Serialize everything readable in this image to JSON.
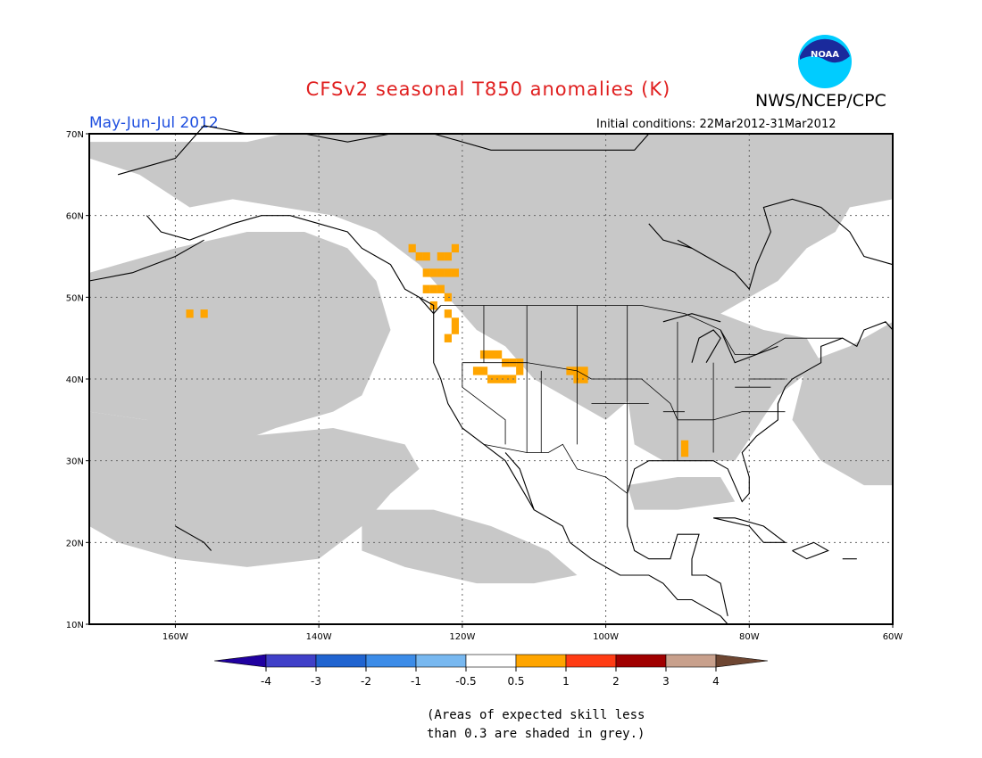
{
  "title": "CFSv2 seasonal T850 anomalies (K)",
  "agency": "NWS/NCEP/CPC",
  "logo_text": "NOAA",
  "period": "May-Jun-Jul 2012",
  "initial_conditions": "Initial conditions: 22Mar2012-31Mar2012",
  "note_lines": [
    "(Areas of expected skill less",
    "than 0.3 are shaded in grey.)"
  ],
  "map": {
    "lon_range": [
      -172,
      -60
    ],
    "lat_range": [
      10,
      70
    ],
    "lon_ticks": [
      {
        "value": -160,
        "label": "160W"
      },
      {
        "value": -140,
        "label": "140W"
      },
      {
        "value": -120,
        "label": "120W"
      },
      {
        "value": -100,
        "label": "100W"
      },
      {
        "value": -80,
        "label": "80W"
      },
      {
        "value": -60,
        "label": "60W"
      }
    ],
    "lat_ticks": [
      {
        "value": 70,
        "label": "70N"
      },
      {
        "value": 60,
        "label": "60N"
      },
      {
        "value": 50,
        "label": "50N"
      },
      {
        "value": 40,
        "label": "40N"
      },
      {
        "value": 30,
        "label": "30N"
      },
      {
        "value": 20,
        "label": "20N"
      },
      {
        "value": 10,
        "label": "10N"
      }
    ],
    "grid": true,
    "low_skill_color": "#c8c8c8",
    "coast_color": "#000000",
    "grey_regions": [
      {
        "name": "arctic-canada",
        "points": [
          [
            -172,
            69
          ],
          [
            -150,
            69
          ],
          [
            -145,
            70
          ],
          [
            -60,
            70
          ],
          [
            -60,
            62
          ],
          [
            -66,
            61
          ],
          [
            -68,
            58
          ],
          [
            -72,
            56
          ],
          [
            -76,
            52
          ],
          [
            -80,
            50
          ],
          [
            -86,
            47
          ],
          [
            -92,
            42
          ],
          [
            -96,
            38
          ],
          [
            -100,
            35
          ],
          [
            -104,
            37
          ],
          [
            -110,
            40
          ],
          [
            -114,
            44
          ],
          [
            -118,
            46
          ],
          [
            -122,
            50
          ],
          [
            -126,
            54
          ],
          [
            -132,
            58
          ],
          [
            -138,
            60
          ],
          [
            -145,
            61
          ],
          [
            -152,
            62
          ],
          [
            -158,
            61
          ],
          [
            -165,
            65
          ],
          [
            -172,
            67
          ]
        ]
      },
      {
        "name": "eastern-us",
        "points": [
          [
            -96,
            44
          ],
          [
            -90,
            47
          ],
          [
            -84,
            48
          ],
          [
            -78,
            46
          ],
          [
            -72,
            45
          ],
          [
            -70,
            42
          ],
          [
            -76,
            38
          ],
          [
            -79,
            34
          ],
          [
            -82,
            30
          ],
          [
            -88,
            30
          ],
          [
            -92,
            30
          ],
          [
            -96,
            32
          ],
          [
            -97,
            38
          ]
        ]
      },
      {
        "name": "gulf-of-mexico",
        "points": [
          [
            -97,
            27
          ],
          [
            -90,
            28
          ],
          [
            -84,
            28
          ],
          [
            -82,
            25
          ],
          [
            -90,
            24
          ],
          [
            -96,
            24
          ]
        ]
      },
      {
        "name": "atlantic-east",
        "points": [
          [
            -72,
            42
          ],
          [
            -66,
            44
          ],
          [
            -60,
            47
          ],
          [
            -60,
            27
          ],
          [
            -64,
            27
          ],
          [
            -70,
            30
          ],
          [
            -74,
            35
          ]
        ]
      },
      {
        "name": "pacific-north",
        "points": [
          [
            -172,
            53
          ],
          [
            -168,
            54
          ],
          [
            -160,
            56
          ],
          [
            -150,
            58
          ],
          [
            -142,
            58
          ],
          [
            -136,
            56
          ],
          [
            -132,
            52
          ],
          [
            -130,
            46
          ],
          [
            -132,
            42
          ],
          [
            -134,
            38
          ],
          [
            -138,
            36
          ],
          [
            -146,
            34
          ],
          [
            -152,
            32
          ],
          [
            -158,
            33
          ],
          [
            -164,
            35
          ],
          [
            -172,
            36
          ]
        ]
      },
      {
        "name": "pacific-central",
        "points": [
          [
            -172,
            36
          ],
          [
            -164,
            35
          ],
          [
            -150,
            33
          ],
          [
            -138,
            34
          ],
          [
            -128,
            32
          ],
          [
            -126,
            29
          ],
          [
            -130,
            26
          ],
          [
            -134,
            22
          ],
          [
            -140,
            18
          ],
          [
            -150,
            17
          ],
          [
            -160,
            18
          ],
          [
            -168,
            20
          ],
          [
            -172,
            22
          ]
        ]
      },
      {
        "name": "pacific-south",
        "points": [
          [
            -134,
            24
          ],
          [
            -124,
            24
          ],
          [
            -116,
            22
          ],
          [
            -108,
            19
          ],
          [
            -104,
            16
          ],
          [
            -110,
            15
          ],
          [
            -118,
            15
          ],
          [
            -128,
            17
          ],
          [
            -134,
            19
          ]
        ]
      }
    ],
    "warm_cells": [
      [
        -158,
        48
      ],
      [
        -156,
        48
      ],
      [
        -127,
        56
      ],
      [
        -126,
        55
      ],
      [
        -125,
        55
      ],
      [
        -123,
        55
      ],
      [
        -122,
        55
      ],
      [
        -121,
        56
      ],
      [
        -125,
        53
      ],
      [
        -124,
        53
      ],
      [
        -123,
        53
      ],
      [
        -122,
        53
      ],
      [
        -121,
        53
      ],
      [
        -125,
        51
      ],
      [
        -124,
        51
      ],
      [
        -123,
        51
      ],
      [
        -122,
        50
      ],
      [
        -124,
        49
      ],
      [
        -122,
        48
      ],
      [
        -121,
        47
      ],
      [
        -121,
        46
      ],
      [
        -122,
        45
      ],
      [
        -117,
        43
      ],
      [
        -116,
        43
      ],
      [
        -115,
        43
      ],
      [
        -114,
        42
      ],
      [
        -113,
        42
      ],
      [
        -112,
        42
      ],
      [
        -118,
        41
      ],
      [
        -117,
        41
      ],
      [
        -116,
        40
      ],
      [
        -115,
        40
      ],
      [
        -114,
        40
      ],
      [
        -113,
        40
      ],
      [
        -112,
        41
      ],
      [
        -105,
        41
      ],
      [
        -104,
        41
      ],
      [
        -103,
        41
      ],
      [
        -104,
        40
      ],
      [
        -103,
        40
      ],
      [
        -89,
        32
      ],
      [
        -89,
        31
      ]
    ],
    "warm_cell_color": "#ffa500",
    "coast_lines": [
      [
        [
          -168,
          65
        ],
        [
          -164,
          66
        ],
        [
          -160,
          67
        ],
        [
          -156,
          71
        ],
        [
          -150,
          70
        ],
        [
          -142,
          70
        ],
        [
          -136,
          69
        ],
        [
          -130,
          70
        ],
        [
          -124,
          70
        ],
        [
          -116,
          68
        ],
        [
          -110,
          68
        ],
        [
          -102,
          68
        ],
        [
          -96,
          68
        ],
        [
          -94,
          70
        ]
      ],
      [
        [
          -164,
          60
        ],
        [
          -162,
          58
        ],
        [
          -158,
          57
        ],
        [
          -152,
          59
        ],
        [
          -148,
          60
        ],
        [
          -144,
          60
        ],
        [
          -140,
          59
        ],
        [
          -136,
          58
        ],
        [
          -134,
          56
        ],
        [
          -132,
          55
        ],
        [
          -130,
          54
        ],
        [
          -128,
          51
        ],
        [
          -124,
          49
        ],
        [
          -124,
          46
        ],
        [
          -124,
          42
        ],
        [
          -123,
          40
        ],
        [
          -122,
          37
        ],
        [
          -120,
          34
        ],
        [
          -117,
          32
        ],
        [
          -114,
          30
        ],
        [
          -112,
          27
        ],
        [
          -110,
          24
        ],
        [
          -106,
          22
        ],
        [
          -105,
          20
        ],
        [
          -102,
          18
        ],
        [
          -98,
          16
        ],
        [
          -94,
          16
        ],
        [
          -92,
          15
        ],
        [
          -90,
          13
        ],
        [
          -88,
          13
        ],
        [
          -86,
          12
        ],
        [
          -84,
          11
        ],
        [
          -83,
          10
        ]
      ],
      [
        [
          -114,
          31
        ],
        [
          -112,
          29
        ],
        [
          -110,
          24
        ]
      ],
      [
        [
          -97,
          26
        ],
        [
          -97,
          22
        ],
        [
          -96,
          19
        ],
        [
          -94,
          18
        ],
        [
          -91,
          18
        ],
        [
          -90,
          21
        ],
        [
          -87,
          21
        ],
        [
          -88,
          18
        ],
        [
          -88,
          16
        ],
        [
          -86,
          16
        ],
        [
          -84,
          15
        ],
        [
          -83,
          11
        ]
      ],
      [
        [
          -97,
          26
        ],
        [
          -96,
          29
        ],
        [
          -94,
          30
        ],
        [
          -90,
          30
        ],
        [
          -88,
          30
        ],
        [
          -85,
          30
        ],
        [
          -83,
          29
        ],
        [
          -82,
          27
        ],
        [
          -81,
          25
        ],
        [
          -80,
          26
        ],
        [
          -80,
          28
        ],
        [
          -81,
          31
        ],
        [
          -79,
          33
        ],
        [
          -76,
          35
        ],
        [
          -76,
          37
        ],
        [
          -75,
          39
        ],
        [
          -74,
          40
        ],
        [
          -72,
          41
        ],
        [
          -70,
          42
        ],
        [
          -70,
          44
        ],
        [
          -67,
          45
        ],
        [
          -65,
          44
        ],
        [
          -64,
          46
        ],
        [
          -61,
          47
        ],
        [
          -60,
          46
        ]
      ],
      [
        [
          -85,
          23
        ],
        [
          -82,
          23
        ],
        [
          -78,
          22
        ],
        [
          -75,
          20
        ],
        [
          -78,
          20
        ],
        [
          -80,
          22
        ],
        [
          -85,
          23
        ]
      ],
      [
        [
          -74,
          19
        ],
        [
          -71,
          20
        ],
        [
          -69,
          19
        ],
        [
          -72,
          18
        ],
        [
          -74,
          19
        ]
      ],
      [
        [
          -67,
          18
        ],
        [
          -65,
          18
        ]
      ],
      [
        [
          -84,
          46
        ],
        [
          -82,
          42
        ],
        [
          -79,
          43
        ],
        [
          -76,
          44
        ]
      ],
      [
        [
          -88,
          42
        ],
        [
          -87,
          45
        ],
        [
          -85,
          46
        ],
        [
          -84,
          45
        ],
        [
          -86,
          42
        ]
      ],
      [
        [
          -92,
          47
        ],
        [
          -88,
          48
        ],
        [
          -84,
          47
        ]
      ],
      [
        [
          -90,
          57
        ],
        [
          -86,
          55
        ],
        [
          -82,
          53
        ],
        [
          -80,
          51
        ],
        [
          -79,
          54
        ],
        [
          -77,
          58
        ],
        [
          -78,
          61
        ],
        [
          -74,
          62
        ],
        [
          -70,
          61
        ],
        [
          -66,
          58
        ],
        [
          -64,
          55
        ],
        [
          -60,
          54
        ]
      ],
      [
        [
          -94,
          59
        ],
        [
          -92,
          57
        ],
        [
          -88,
          56
        ]
      ],
      [
        [
          -126,
          50
        ],
        [
          -124,
          48
        ],
        [
          -123,
          49
        ]
      ],
      [
        [
          -172,
          52
        ],
        [
          -166,
          53
        ],
        [
          -160,
          55
        ],
        [
          -156,
          57
        ]
      ],
      [
        [
          -160,
          22
        ],
        [
          -158,
          21
        ],
        [
          -156,
          20
        ],
        [
          -155,
          19
        ]
      ]
    ],
    "border_lines": [
      [
        [
          -123,
          49
        ],
        [
          -95,
          49
        ],
        [
          -89,
          48
        ],
        [
          -84,
          46
        ],
        [
          -82,
          43
        ],
        [
          -79,
          43
        ],
        [
          -75,
          45
        ],
        [
          -71,
          45
        ],
        [
          -67,
          45
        ]
      ],
      [
        [
          -117,
          32
        ],
        [
          -111,
          31
        ],
        [
          -108,
          31
        ],
        [
          -106,
          32
        ],
        [
          -104,
          29
        ],
        [
          -100,
          28
        ],
        [
          -97,
          26
        ]
      ],
      [
        [
          -120,
          42
        ],
        [
          -111,
          42
        ],
        [
          -104,
          41
        ],
        [
          -102,
          40
        ],
        [
          -95,
          40
        ],
        [
          -91,
          37
        ],
        [
          -90,
          35
        ],
        [
          -88,
          35
        ],
        [
          -85,
          35
        ],
        [
          -81,
          36
        ],
        [
          -75,
          36
        ]
      ],
      [
        [
          -117,
          49
        ],
        [
          -117,
          42
        ]
      ],
      [
        [
          -111,
          49
        ],
        [
          -111,
          31
        ]
      ],
      [
        [
          -104,
          49
        ],
        [
          -104,
          32
        ]
      ],
      [
        [
          -97,
          49
        ],
        [
          -97,
          26
        ]
      ],
      [
        [
          -120,
          42
        ],
        [
          -120,
          39
        ],
        [
          -114,
          35
        ],
        [
          -114,
          32
        ]
      ],
      [
        [
          -90,
          47
        ],
        [
          -90,
          30
        ]
      ],
      [
        [
          -85,
          42
        ],
        [
          -85,
          31
        ]
      ],
      [
        [
          -109,
          41
        ],
        [
          -109,
          31
        ]
      ],
      [
        [
          -102,
          37
        ],
        [
          -94,
          37
        ]
      ],
      [
        [
          -80,
          40
        ],
        [
          -75,
          40
        ]
      ],
      [
        [
          -92,
          36
        ],
        [
          -89,
          36
        ]
      ],
      [
        [
          -82,
          39
        ],
        [
          -77,
          39
        ]
      ]
    ]
  },
  "colorbar": {
    "labels": [
      "-4",
      "-3",
      "-2",
      "-1",
      "-0.5",
      "0.5",
      "1",
      "2",
      "3",
      "4"
    ],
    "colors": [
      "#4040c8",
      "#2064d0",
      "#3c8ce8",
      "#78b8f0",
      "#ffffff",
      "#ffa500",
      "#ff3c14",
      "#a00000",
      "#c8a08c"
    ],
    "low_arrow_color": "#2000a0",
    "high_arrow_color": "#6e4632"
  }
}
